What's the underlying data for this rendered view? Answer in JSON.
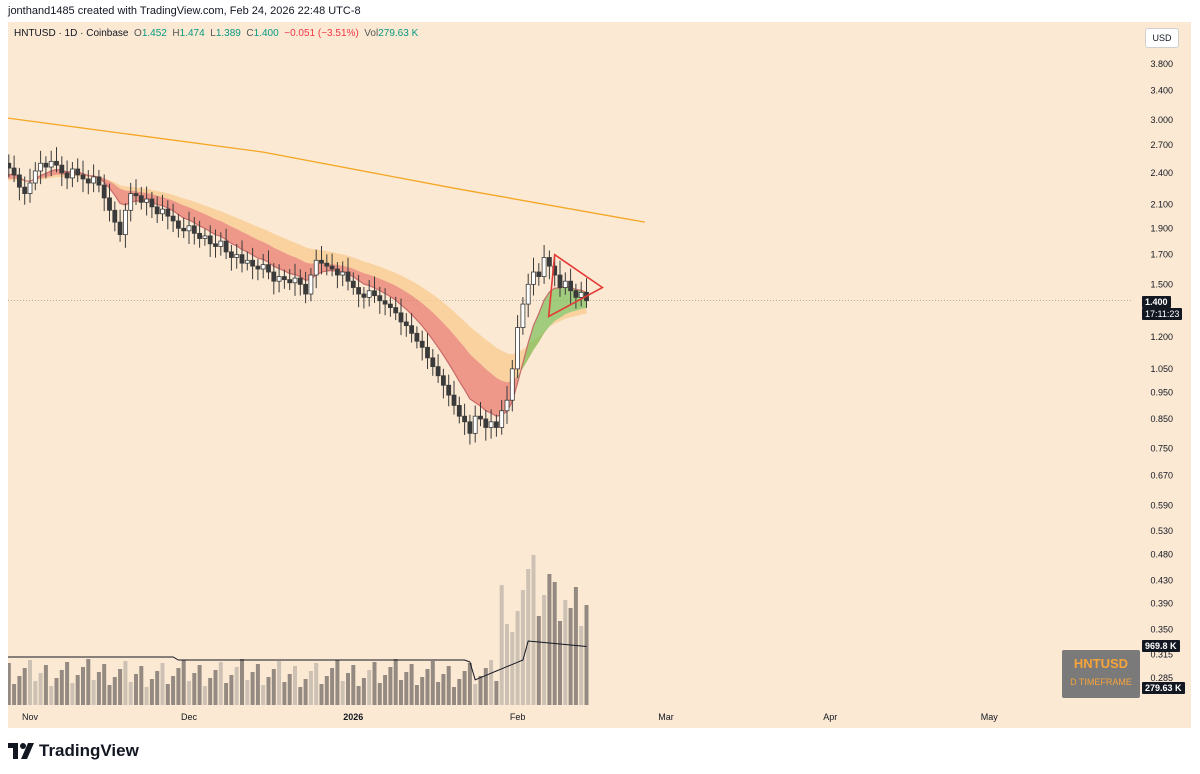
{
  "header": {
    "text": "jonthand1485 created with TradingView.com, Feb 24, 2026 22:48 UTC-8"
  },
  "legend": {
    "symbol": "HNTUSD · 1D · Coinbase",
    "open_label": "O",
    "open": "1.452",
    "high_label": "H",
    "high": "1.474",
    "low_label": "L",
    "low": "1.389",
    "close_label": "C",
    "close": "1.400",
    "change": "−0.051 (−3.51%)",
    "vol_label": "Vol",
    "vol": "279.63 K"
  },
  "currency_button": "USD",
  "price_axis": {
    "ticks": [
      "3.800",
      "3.400",
      "3.000",
      "2.700",
      "2.400",
      "2.100",
      "1.900",
      "1.700",
      "1.500",
      "1.200",
      "1.050",
      "0.950",
      "0.850",
      "0.750",
      "0.670",
      "0.590",
      "0.530",
      "0.480",
      "0.430",
      "0.390",
      "0.350",
      "0.315",
      "0.285"
    ],
    "last_price": "1.400",
    "countdown": "17:11:23",
    "volume_ma": "969.8 K",
    "volume": "279.63 K"
  },
  "time_axis": {
    "ticks": [
      "Nov",
      "Dec",
      "2026",
      "Feb",
      "Mar",
      "Apr",
      "May"
    ]
  },
  "promo": {
    "title": "HNTUSD",
    "subtitle": "D TIMEFRAME"
  },
  "brand": {
    "name": "TradingView"
  },
  "colors": {
    "background": "#fbe9d3",
    "up": "#ffffff",
    "down": "#3a3a3a",
    "ma200": "#f5a623",
    "triangle": "#e53935",
    "ribbon_bear": "#e8756a",
    "ribbon_bull": "#7bbf5a",
    "ribbon_outer": "#f8c98e"
  },
  "chart_data": {
    "type": "candlestick",
    "symbol": "HNTUSD",
    "timeframe": "1D",
    "exchange": "Coinbase",
    "scale": "log",
    "ylim": [
      0.27,
      4.2
    ],
    "x_ticks": [
      "Nov",
      "Dec",
      "2026",
      "Feb",
      "Mar",
      "Apr",
      "May"
    ],
    "close_series": {
      "start": "2025-10-25",
      "values": [
        2.3,
        2.42,
        2.5,
        2.45,
        2.38,
        2.26,
        2.2,
        2.3,
        2.42,
        2.5,
        2.46,
        2.52,
        2.48,
        2.4,
        2.35,
        2.44,
        2.38,
        2.34,
        2.3,
        2.36,
        2.28,
        2.16,
        2.05,
        1.95,
        1.85,
        2.05,
        2.2,
        2.18,
        2.12,
        2.15,
        2.08,
        2.02,
        2.06,
        2.0,
        1.96,
        1.9,
        1.88,
        1.92,
        1.86,
        1.82,
        1.84,
        1.78,
        1.76,
        1.8,
        1.72,
        1.68,
        1.7,
        1.64,
        1.66,
        1.62,
        1.6,
        1.63,
        1.58,
        1.52,
        1.55,
        1.53,
        1.51,
        1.54,
        1.5,
        1.44,
        1.56,
        1.66,
        1.64,
        1.62,
        1.6,
        1.56,
        1.58,
        1.52,
        1.48,
        1.44,
        1.42,
        1.46,
        1.43,
        1.4,
        1.38,
        1.36,
        1.33,
        1.28,
        1.26,
        1.22,
        1.18,
        1.15,
        1.1,
        1.06,
        1.02,
        0.98,
        0.94,
        0.9,
        0.86,
        0.84,
        0.8,
        0.86,
        0.85,
        0.82,
        0.84,
        0.82,
        0.88,
        0.92,
        1.05,
        1.25,
        1.38,
        1.5,
        1.58,
        1.55,
        1.68,
        1.62,
        1.56,
        1.48,
        1.52,
        1.46,
        1.42,
        1.45,
        1.4
      ]
    },
    "ma200": [
      {
        "date": "2025-10-25",
        "value": 3.05
      },
      {
        "date": "2025-12-15",
        "value": 2.62
      },
      {
        "date": "2026-01-20",
        "value": 2.25
      },
      {
        "date": "2026-02-25",
        "value": 1.95
      }
    ],
    "triangle": {
      "upper": [
        1.7,
        1.48
      ],
      "lower": [
        1.31,
        1.48
      ]
    },
    "volume_ma": 969.8,
    "last_volume": 279.63
  }
}
